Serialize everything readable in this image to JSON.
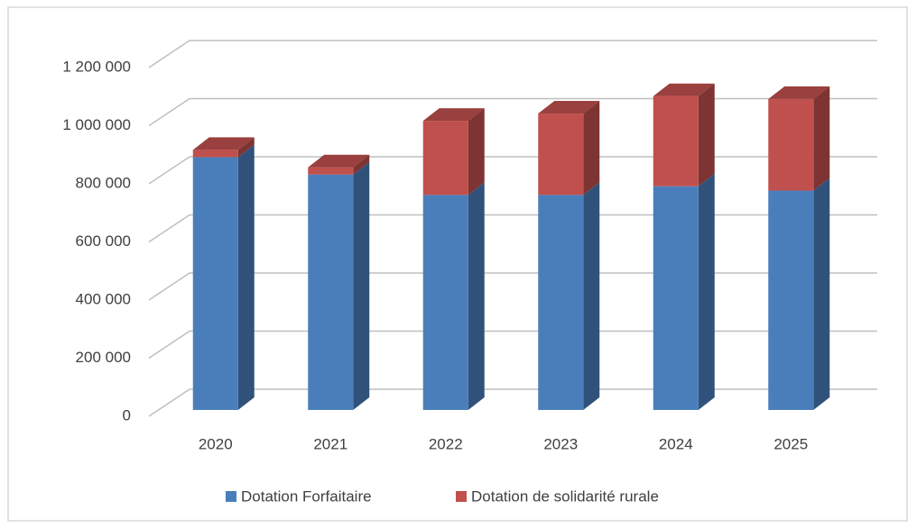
{
  "chart_data": {
    "type": "bar3d_stacked",
    "categories": [
      "2020",
      "2021",
      "2022",
      "2023",
      "2024",
      "2025"
    ],
    "series": [
      {
        "name": "Dotation Forfaitaire",
        "color": "#4a7ebb",
        "values": [
          870000,
          810000,
          740000,
          740000,
          770000,
          755000
        ]
      },
      {
        "name": "Dotation de solidarité rurale",
        "color": "#c0504d",
        "values": [
          25000,
          25000,
          255000,
          280000,
          310000,
          315000
        ]
      }
    ],
    "ylim": [
      0,
      1200000
    ],
    "yticks": [
      0,
      {
        "value": 200000,
        "label": "200 000"
      },
      {
        "value": 400000,
        "label": "400 000"
      },
      {
        "value": 600000,
        "label": "600 000"
      },
      {
        "value": 800000,
        "label": "800 000"
      },
      {
        "value": 1000000,
        "label": "1 000 000"
      },
      {
        "value": 1200000,
        "label": "1 200 000"
      }
    ],
    "grid": true
  }
}
